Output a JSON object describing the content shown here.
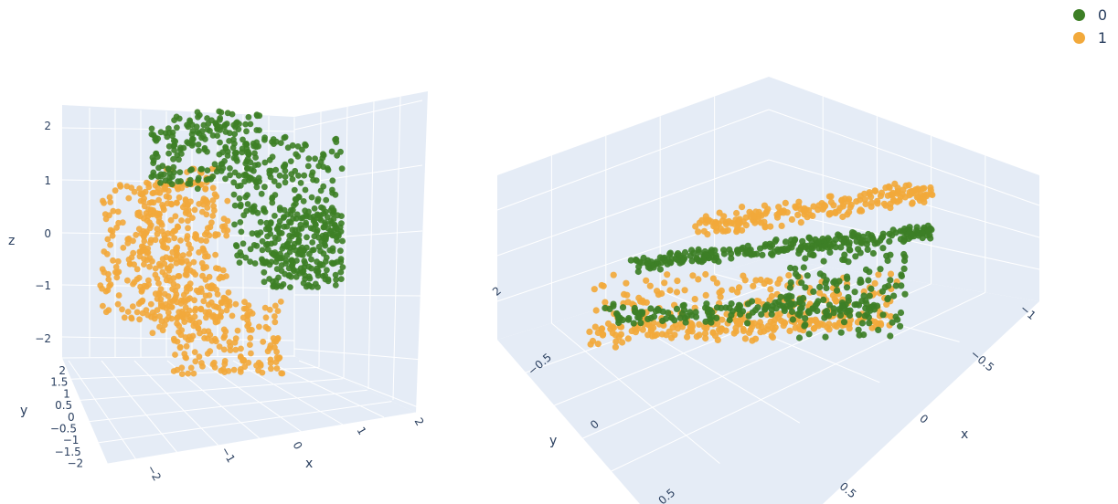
{
  "legend": [
    {
      "label": "0",
      "color": "#3d7f26"
    },
    {
      "label": "1",
      "color": "#f2a93b"
    }
  ],
  "chart_data": [
    {
      "type": "scatter",
      "title": "",
      "xlabel": "x",
      "ylabel": "y",
      "zlabel": "z",
      "xlim": [
        -2.2,
        2.2
      ],
      "ylim": [
        -2.2,
        2.2
      ],
      "zlim": [
        -2.5,
        2.3
      ],
      "x_ticks": [
        "−2",
        "−1",
        "0",
        "1",
        "2"
      ],
      "y_ticks": [
        "−2",
        "−1.5",
        "−1",
        "−0.5",
        "0",
        "0.5",
        "1",
        "1.5",
        "2"
      ],
      "z_ticks": [
        "−2",
        "−1",
        "0",
        "1",
        "2"
      ],
      "series": [
        {
          "name": "0",
          "color": "#3d7f26",
          "shape": "upper arc",
          "x_range": [
            -1.2,
            2.0
          ],
          "z_range": [
            -1.0,
            2.2
          ],
          "points": 600
        },
        {
          "name": "1",
          "color": "#f2a93b",
          "shape": "lower arc",
          "x_range": [
            -2.0,
            1.2
          ],
          "z_range": [
            -2.5,
            1.2
          ],
          "points": 600
        }
      ]
    },
    {
      "type": "scatter",
      "title": "",
      "xlabel": "x",
      "ylabel": "y",
      "zlabel": "",
      "x_ticks": [
        "−1",
        "−0.5",
        "0",
        "0.5"
      ],
      "y_ticks": [
        "−0.5",
        "0",
        "0.5"
      ],
      "z_ticks": [
        "2"
      ],
      "series": [
        {
          "name": "0",
          "color": "#3d7f26",
          "shape": "ring",
          "points": 600
        },
        {
          "name": "1",
          "color": "#f2a93b",
          "shape": "ring",
          "points": 600
        }
      ]
    }
  ]
}
